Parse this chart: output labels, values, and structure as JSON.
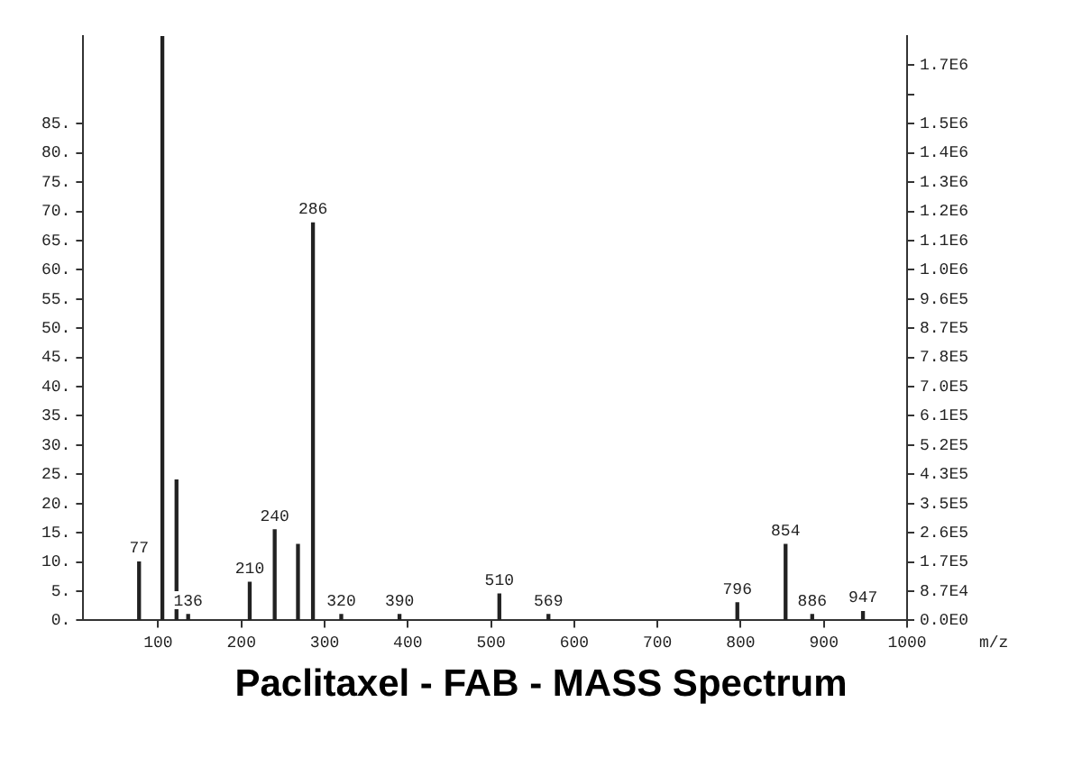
{
  "chart_data": {
    "type": "bar",
    "title": "Paclitaxel -  FAB - MASS Spectrum",
    "xlabel": "m/z",
    "x": [
      77,
      105,
      122,
      136,
      210,
      240,
      268,
      286,
      320,
      390,
      510,
      569,
      796,
      854,
      886,
      947
    ],
    "values": [
      10,
      100,
      24,
      1,
      6.5,
      15.5,
      13,
      68,
      1,
      1,
      4.5,
      1,
      3,
      13,
      1,
      1.5
    ],
    "color": "#222222",
    "xlim": [
      10,
      1000
    ],
    "xticks": [
      100,
      200,
      300,
      400,
      500,
      600,
      700,
      800,
      900,
      1000
    ],
    "ylim": [
      0,
      100
    ],
    "yticks": [
      {
        "value": 0,
        "label": "0."
      },
      {
        "value": 5,
        "label": "5."
      },
      {
        "value": 10,
        "label": "10."
      },
      {
        "value": 15,
        "label": "15."
      },
      {
        "value": 20,
        "label": "20."
      },
      {
        "value": 25,
        "label": "25."
      },
      {
        "value": 30,
        "label": "30."
      },
      {
        "value": 35,
        "label": "35."
      },
      {
        "value": 40,
        "label": "40."
      },
      {
        "value": 45,
        "label": "45."
      },
      {
        "value": 50,
        "label": "50."
      },
      {
        "value": 55,
        "label": "55."
      },
      {
        "value": 60,
        "label": "60."
      },
      {
        "value": 65,
        "label": "65."
      },
      {
        "value": 70,
        "label": "70."
      },
      {
        "value": 75,
        "label": "75."
      },
      {
        "value": 80,
        "label": "80."
      },
      {
        "value": 85,
        "label": "85."
      }
    ],
    "y2lim": [
      0,
      1740000
    ],
    "y2ticks": [
      {
        "value": 0,
        "label": "0.0E0"
      },
      {
        "value": 87000,
        "label": "8.7E4"
      },
      {
        "value": 174000,
        "label": "1.7E5"
      },
      {
        "value": 261000,
        "label": "2.6E5"
      },
      {
        "value": 348000,
        "label": "3.5E5"
      },
      {
        "value": 435000,
        "label": "4.3E5"
      },
      {
        "value": 522000,
        "label": "5.2E5"
      },
      {
        "value": 609000,
        "label": "6.1E5"
      },
      {
        "value": 696000,
        "label": "7.0E5"
      },
      {
        "value": 783000,
        "label": "7.8E5"
      },
      {
        "value": 870000,
        "label": "8.7E5"
      },
      {
        "value": 957000,
        "label": "9.6E5"
      },
      {
        "value": 1044000,
        "label": "1.0E6"
      },
      {
        "value": 1131000,
        "label": "1.1E6"
      },
      {
        "value": 1218000,
        "label": "1.2E6"
      },
      {
        "value": 1305000,
        "label": "1.3E6"
      },
      {
        "value": 1392000,
        "label": "1.4E6"
      },
      {
        "value": 1479000,
        "label": "1.5E6"
      },
      {
        "value": 1566000,
        "label": null
      },
      {
        "value": 1653000,
        "label": "1.7E6"
      }
    ],
    "annotations": [
      {
        "text": "77",
        "x": 77,
        "y": 10
      },
      {
        "text": "136",
        "x": 136,
        "y": 1
      },
      {
        "text": "210",
        "x": 210,
        "y": 6.5
      },
      {
        "text": "240",
        "x": 240,
        "y": 15.5
      },
      {
        "text": "286",
        "x": 286,
        "y": 68
      },
      {
        "text": "320",
        "x": 320,
        "y": 1
      },
      {
        "text": "390",
        "x": 390,
        "y": 1
      },
      {
        "text": "510",
        "x": 510,
        "y": 4.5
      },
      {
        "text": "569",
        "x": 569,
        "y": 1
      },
      {
        "text": "796",
        "x": 796,
        "y": 3
      },
      {
        "text": "854",
        "x": 854,
        "y": 13
      },
      {
        "text": "886",
        "x": 886,
        "y": 1
      },
      {
        "text": "947",
        "x": 947,
        "y": 1.5
      }
    ],
    "grid": false,
    "legend": false
  }
}
